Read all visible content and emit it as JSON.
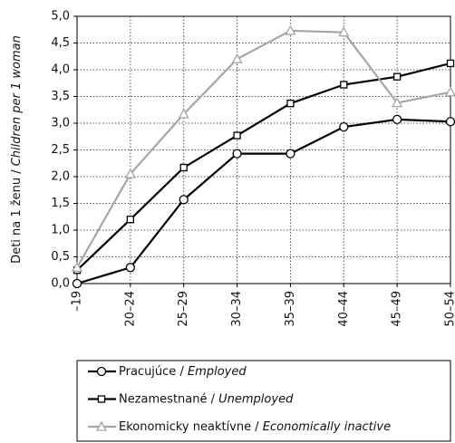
{
  "chart_data": {
    "type": "line",
    "y_label": "Deti na 1 ženu / Children per 1 woman",
    "categories": [
      "–19",
      "20–24",
      "25–29",
      "30–34",
      "35–39",
      "40–44",
      "45–49",
      "50–54"
    ],
    "ylim": [
      0,
      5
    ],
    "yticks": [
      {
        "value": 0,
        "label": "0,0"
      },
      {
        "value": 0.5,
        "label": "0,5"
      },
      {
        "value": 1,
        "label": "1,0"
      },
      {
        "value": 1.5,
        "label": "1,5"
      },
      {
        "value": 2,
        "label": "2,0"
      },
      {
        "value": 2.5,
        "label": "2,5"
      },
      {
        "value": 3,
        "label": "3,0"
      },
      {
        "value": 3.5,
        "label": "3,5"
      },
      {
        "value": 4,
        "label": "4,0"
      },
      {
        "value": 4.5,
        "label": "4,5"
      },
      {
        "value": 5,
        "label": "5,0"
      }
    ],
    "grid": true,
    "legend": "bottom",
    "series": [
      {
        "name": "Pracujúce / Employed",
        "color": "#000000",
        "marker": "circle",
        "values": [
          0.0,
          0.3,
          1.57,
          2.43,
          2.43,
          2.93,
          3.07,
          3.03
        ]
      },
      {
        "name": "Nezamestnané / Unemployed",
        "color": "#000000",
        "marker": "square",
        "values": [
          0.25,
          1.2,
          2.17,
          2.77,
          3.37,
          3.72,
          3.87,
          4.12
        ]
      },
      {
        "name": "Ekonomicky neaktívne / Economically inactive",
        "color": "#a6a6a6",
        "marker": "triangle",
        "values": [
          0.3,
          2.05,
          3.17,
          4.2,
          4.73,
          4.7,
          3.38,
          3.58
        ]
      }
    ]
  }
}
